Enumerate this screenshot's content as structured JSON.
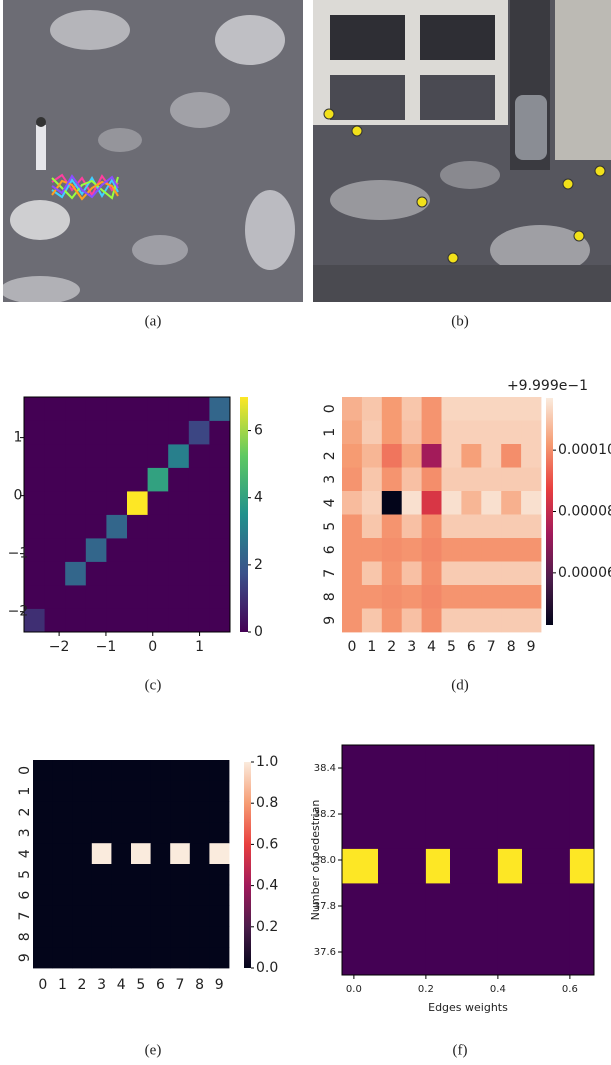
{
  "captions": [
    "(a)",
    "(b)",
    "(c)",
    "(d)",
    "(e)",
    "(f)"
  ],
  "chart_data": [
    {
      "type": "heatmap",
      "colormap": "viridis",
      "xlim": [
        -2.75,
        1.65
      ],
      "ylim": [
        -2.35,
        1.7
      ],
      "xticks": [
        {
          "value": -2,
          "label": "−2"
        },
        {
          "value": -1,
          "label": "−1"
        },
        0,
        1
      ],
      "yticks": [
        {
          "value": -2,
          "label": "−2"
        },
        {
          "value": -1,
          "label": "−1"
        },
        0,
        1
      ],
      "z": [
        [
          1,
          0,
          0,
          0,
          0,
          0,
          0,
          0,
          0,
          0
        ],
        [
          0,
          0,
          0,
          0,
          0,
          0,
          0,
          0,
          0,
          0
        ],
        [
          0,
          0,
          2.3,
          0,
          0,
          0,
          0,
          0,
          0,
          0
        ],
        [
          0,
          0,
          0,
          2.3,
          0,
          0,
          0,
          0,
          0,
          0
        ],
        [
          0,
          0,
          0,
          0,
          2.3,
          0,
          0,
          0,
          0,
          0
        ],
        [
          0,
          0,
          0,
          0,
          0,
          7,
          0,
          0,
          0,
          0
        ],
        [
          0,
          0,
          0,
          0,
          0,
          0,
          4,
          0,
          0,
          0
        ],
        [
          0,
          0,
          0,
          0,
          0,
          0,
          0,
          3,
          0,
          0
        ],
        [
          0,
          0,
          0,
          0,
          0,
          0,
          0,
          0,
          1.5,
          0
        ],
        [
          0,
          0,
          0,
          0,
          0,
          0,
          0,
          0,
          0,
          2.3
        ]
      ],
      "zlim": [
        0,
        7
      ],
      "colorbar_ticks": [
        0,
        2,
        4,
        6
      ]
    },
    {
      "type": "heatmap",
      "colormap": "rocket",
      "x_categories": [
        "0",
        "1",
        "2",
        "3",
        "4",
        "5",
        "6",
        "7",
        "8",
        "9"
      ],
      "y_categories": [
        "0",
        "1",
        "2",
        "3",
        "4",
        "5",
        "6",
        "7",
        "8",
        "9"
      ],
      "z": [
        [
          0.000106,
          0.00011,
          0.000102,
          0.00011,
          0.000101,
          0.000113,
          0.000113,
          0.000113,
          0.000113,
          0.000113
        ],
        [
          0.000104,
          0.000111,
          0.000102,
          0.000109,
          0.000101,
          0.000112,
          0.000112,
          0.000112,
          0.000112,
          0.000112
        ],
        [
          0.000102,
          0.000107,
          9.6e-05,
          0.000104,
          7.3e-05,
          0.000112,
          0.000103,
          0.000112,
          0.0001,
          0.000112
        ],
        [
          0.000101,
          0.00011,
          0.000101,
          0.000109,
          0.0001,
          0.000111,
          0.000111,
          0.000111,
          0.000111,
          0.000111
        ],
        [
          0.000108,
          0.000112,
          4.3e-05,
          0.000115,
          8.4e-05,
          0.000115,
          0.000107,
          0.000115,
          0.000106,
          0.000115
        ],
        [
          0.000101,
          0.00011,
          0.000101,
          0.000109,
          0.0001,
          0.000111,
          0.000111,
          0.000111,
          0.000111,
          0.000111
        ],
        [
          0.000101,
          0.000101,
          0.0001,
          0.000101,
          9.9e-05,
          0.000101,
          0.000101,
          0.000101,
          0.000101,
          0.000101
        ],
        [
          0.000101,
          0.00011,
          0.000101,
          0.000109,
          0.0001,
          0.000111,
          0.000111,
          0.000111,
          0.000111,
          0.000111
        ],
        [
          0.000101,
          0.000101,
          0.0001,
          0.000101,
          9.9e-05,
          0.000101,
          0.000101,
          0.000101,
          0.000101,
          0.000101
        ],
        [
          0.000101,
          0.00011,
          0.000101,
          0.000109,
          0.0001,
          0.000111,
          0.000111,
          0.000111,
          0.000111,
          0.000111
        ]
      ],
      "zlim": [
        4.3e-05,
        0.000117
      ],
      "colorbar_ticks": [
        {
          "value": 6e-05,
          "label": "0.00006"
        },
        {
          "value": 8e-05,
          "label": "0.00008"
        },
        {
          "value": 0.0001,
          "label": "0.00010"
        }
      ],
      "offset_text": "+9.999e−1"
    },
    {
      "type": "heatmap",
      "colormap": "rocket",
      "x_categories": [
        "0",
        "1",
        "2",
        "3",
        "4",
        "5",
        "6",
        "7",
        "8",
        "9"
      ],
      "y_categories": [
        "0",
        "1",
        "2",
        "3",
        "4",
        "5",
        "6",
        "7",
        "8",
        "9"
      ],
      "z": [
        [
          0,
          0,
          0,
          0,
          0,
          0,
          0,
          0,
          0,
          0
        ],
        [
          0,
          0,
          0,
          0,
          0,
          0,
          0,
          0,
          0,
          0
        ],
        [
          0,
          0,
          0,
          0,
          0,
          0,
          0,
          0,
          0,
          0
        ],
        [
          0,
          0,
          0,
          0,
          0,
          0,
          0,
          0,
          0,
          0
        ],
        [
          0,
          0,
          0,
          1,
          0,
          1,
          0,
          1,
          0,
          1
        ],
        [
          0,
          0,
          0,
          0,
          0,
          0,
          0,
          0,
          0,
          0
        ],
        [
          0,
          0,
          0,
          0,
          0,
          0,
          0,
          0,
          0,
          0
        ],
        [
          0,
          0,
          0,
          0,
          0,
          0,
          0,
          0,
          0,
          0
        ],
        [
          0,
          0,
          0,
          0,
          0,
          0,
          0,
          0,
          0,
          0
        ],
        [
          0,
          0,
          0,
          0,
          0,
          0,
          0,
          0,
          0,
          0
        ]
      ],
      "zlim": [
        0,
        1
      ],
      "colorbar_ticks": [
        {
          "value": 0,
          "label": "0.0"
        },
        0.2,
        0.4,
        0.6,
        0.8,
        {
          "value": 1,
          "label": "1.0"
        }
      ]
    },
    {
      "type": "heatmap",
      "colormap": "viridis",
      "xbins": [
        -0.033,
        0.067,
        0.2,
        0.267,
        0.4,
        0.467,
        0.6,
        0.667
      ],
      "ybins": [
        37.5,
        37.9,
        38.05,
        38.5
      ],
      "z": [
        [
          0,
          0,
          0,
          0,
          0,
          0,
          0
        ],
        [
          1,
          0,
          1,
          0,
          1,
          0,
          1
        ],
        [
          0,
          0,
          0,
          0,
          0,
          0,
          0
        ]
      ],
      "xlim": [
        -0.033,
        0.667
      ],
      "ylim": [
        37.5,
        38.5
      ],
      "xticks": [
        {
          "value": 0,
          "label": "0.0"
        },
        0.2,
        0.4,
        0.6
      ],
      "yticks": [
        37.6,
        37.8,
        {
          "value": 38,
          "label": "38.0"
        },
        38.2,
        38.4
      ],
      "x_label": "Edges weights",
      "y_label": "Number of pedestrian"
    }
  ]
}
